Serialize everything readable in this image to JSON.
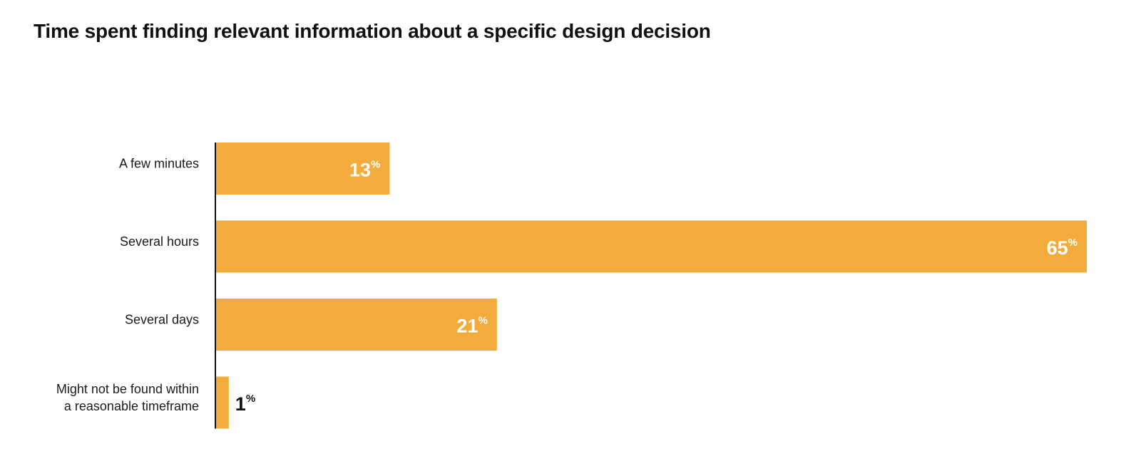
{
  "chart_data": {
    "type": "bar",
    "orientation": "horizontal",
    "title": "Time spent finding relevant information about a specific design decision",
    "categories": [
      [
        "A few minutes"
      ],
      [
        "Several hours"
      ],
      [
        "Several days"
      ],
      [
        "Might not be found within",
        "a reasonable timeframe"
      ]
    ],
    "values": [
      13,
      65,
      21,
      1
    ],
    "value_suffix": "%",
    "xlim": [
      0,
      65
    ],
    "grid": false,
    "bar_color": "#F3AB3C",
    "axis_color": "#111111",
    "label_inside_color": "#ffffff",
    "label_outside_color": "#111111"
  }
}
